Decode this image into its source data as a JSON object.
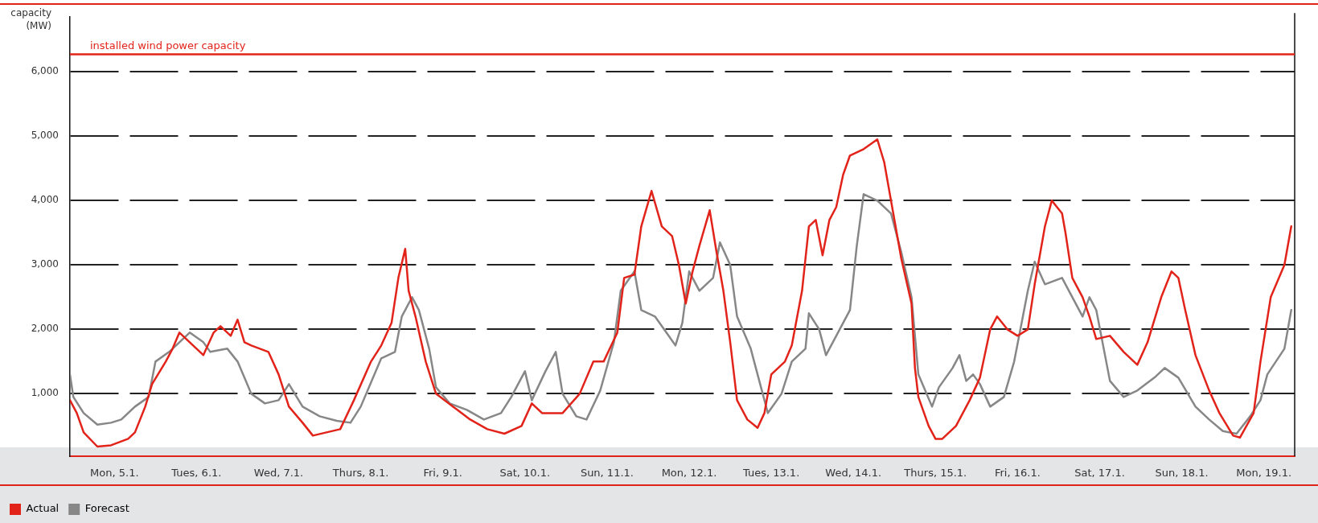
{
  "chart_data": {
    "type": "line",
    "ylabel": "capacity (MW)",
    "xlim": [
      "--01-04T11:00",
      "--01-19T09:00"
    ],
    "ylim": [
      30,
      6850
    ],
    "xticks": [
      {
        "value": "--01-05",
        "label": "Mon, 5.1."
      },
      {
        "value": "--01-06",
        "label": "Tues, 6.1."
      },
      {
        "value": "--01-07",
        "label": "Wed, 7.1."
      },
      {
        "value": "--01-08",
        "label": "Thurs, 8.1."
      },
      {
        "value": "--01-09",
        "label": "Fri, 9.1."
      },
      {
        "value": "--01-10",
        "label": "Sat, 10.1."
      },
      {
        "value": "--01-11",
        "label": "Sun, 11.1."
      },
      {
        "value": "--01-12",
        "label": "Mon, 12.1."
      },
      {
        "value": "--01-13",
        "label": "Tues, 13.1."
      },
      {
        "value": "--01-14",
        "label": "Wed, 14.1."
      },
      {
        "value": "--01-15",
        "label": "Thurs, 15.1."
      },
      {
        "value": "--01-16",
        "label": "Fri, 16.1."
      },
      {
        "value": "--01-17",
        "label": "Sat, 17.1."
      },
      {
        "value": "--01-18",
        "label": "Sun, 18.1."
      },
      {
        "value": "--01-19",
        "label": "Mon, 19.1."
      }
    ],
    "yticks": [
      {
        "value": 1000,
        "label": "1,000"
      },
      {
        "value": 2000,
        "label": "2,000"
      },
      {
        "value": 3000,
        "label": "3,000"
      },
      {
        "value": 4000,
        "label": "4,000"
      },
      {
        "value": 5000,
        "label": "5,000"
      },
      {
        "value": 6000,
        "label": "6,000"
      }
    ],
    "grid": "y",
    "legend": "bottom left",
    "marker": "none",
    "line_style": "solid",
    "ref_lines": [
      {
        "axis": "y",
        "value": 6270,
        "label": "installed wind power capacity",
        "color": "#e2231a"
      }
    ],
    "series": [
      {
        "name": "Actual",
        "color": "#e2231a",
        "x": [
          "--01-04T11:00",
          "--01-04T13:00",
          "--01-04T15:00",
          "--01-04T19:00",
          "--01-04T23:00",
          "--01-05T04:00",
          "--01-05T06:00",
          "--01-05T09:00",
          "--01-05T11:00",
          "--01-05T15:00",
          "--01-05T17:00",
          "--01-05T19:00",
          "--01-05T22:00",
          "--01-06T02:00",
          "--01-06T05:00",
          "--01-06T07:00",
          "--01-06T10:00",
          "--01-06T12:00",
          "--01-06T14:00",
          "--01-06T16:00",
          "--01-06T21:00",
          "--01-07T00:00",
          "--01-07T03:00",
          "--01-07T07:00",
          "--01-07T10:00",
          "--01-07T14:00",
          "--01-07T18:00",
          "--01-07T22:00",
          "--01-08T03:00",
          "--01-08T06:00",
          "--01-08T09:00",
          "--01-08T11:00",
          "--01-08T13:00",
          "--01-08T14:00",
          "--01-08T16:00",
          "--01-08T19:00",
          "--01-08T22:00",
          "--01-09T03:00",
          "--01-09T08:00",
          "--01-09T13:00",
          "--01-09T18:00",
          "--01-09T23:00",
          "--01-10T02:00",
          "--01-10T05:00",
          "--01-10T11:00",
          "--01-10T16:00",
          "--01-10T20:00",
          "--01-10T23:00",
          "--01-11T03:00",
          "--01-11T05:00",
          "--01-11T08:00",
          "--01-11T10:00",
          "--01-11T13:00",
          "--01-11T16:00",
          "--01-11T19:00",
          "--01-11T21:00",
          "--01-11T23:00",
          "--01-12T01:00",
          "--01-12T03:00",
          "--01-12T06:00",
          "--01-12T08:00",
          "--01-12T10:00",
          "--01-12T12:00",
          "--01-12T14:00",
          "--01-12T17:00",
          "--01-12T20:00",
          "--01-12T22:00",
          "--01-13T00:00",
          "--01-13T04:00",
          "--01-13T06:00",
          "--01-13T09:00",
          "--01-13T11:00",
          "--01-13T13:00",
          "--01-13T15:00",
          "--01-13T17:00",
          "--01-13T19:00",
          "--01-13T21:00",
          "--01-13T23:00",
          "--01-14T03:00",
          "--01-14T07:00",
          "--01-14T09:00",
          "--01-14T12:00",
          "--01-14T14:00",
          "--01-14T17:00",
          "--01-14T18:00",
          "--01-14T19:00",
          "--01-14T22:00",
          "--01-15T00:00",
          "--01-15T02:00",
          "--01-15T06:00",
          "--01-15T10:00",
          "--01-15T13:00",
          "--01-15T16:00",
          "--01-15T18:00",
          "--01-15T21:00",
          "--01-16T00:00",
          "--01-16T03:00",
          "--01-16T05:00",
          "--01-16T08:00",
          "--01-16T10:00",
          "--01-16T13:00",
          "--01-16T14:00",
          "--01-16T16:00",
          "--01-16T19:00",
          "--01-16T21:00",
          "--01-16T23:00",
          "--01-17T03:00",
          "--01-17T07:00",
          "--01-17T11:00",
          "--01-17T14:00",
          "--01-17T18:00",
          "--01-17T21:00",
          "--01-17T23:00",
          "--01-18T01:00",
          "--01-18T04:00",
          "--01-18T08:00",
          "--01-18T11:00",
          "--01-18T15:00",
          "--01-18T17:00",
          "--01-18T21:00",
          "--01-18T23:00",
          "--01-19T02:00",
          "--01-19T06:00",
          "--01-19T08:00"
        ],
        "values": [
          900,
          700,
          400,
          180,
          200,
          300,
          400,
          800,
          1150,
          1500,
          1700,
          1950,
          1800,
          1600,
          1950,
          2050,
          1900,
          2150,
          1800,
          1750,
          1650,
          1300,
          800,
          550,
          350,
          400,
          450,
          900,
          1500,
          1750,
          2100,
          2800,
          3250,
          2600,
          2200,
          1500,
          1000,
          800,
          600,
          450,
          380,
          500,
          850,
          700,
          700,
          1000,
          1500,
          1500,
          1950,
          2800,
          2850,
          3600,
          4150,
          3600,
          3450,
          3000,
          2400,
          2900,
          3300,
          3850,
          3200,
          2600,
          1800,
          900,
          600,
          470,
          700,
          1300,
          1500,
          1750,
          2600,
          3600,
          3700,
          3150,
          3700,
          3900,
          4400,
          4700,
          4800,
          4950,
          4600,
          3700,
          3100,
          2400,
          1400,
          950,
          500,
          300,
          300,
          500,
          900,
          1250,
          2000,
          2200,
          2000,
          1900,
          2000,
          2700,
          3600,
          4000,
          3800,
          3500,
          2800,
          2500,
          2200,
          1850,
          1900,
          1650,
          1450,
          1800,
          2500,
          2900,
          2800,
          2300,
          1600,
          1050,
          700,
          350,
          320,
          700,
          1500,
          2500,
          3000,
          3600
        ]
      },
      {
        "name": "Forecast",
        "color": "#878787",
        "x": [
          "--01-04T11:00",
          "--01-04T12:00",
          "--01-04T15:00",
          "--01-04T19:00",
          "--01-04T23:00",
          "--01-05T02:00",
          "--01-05T06:00",
          "--01-05T10:00",
          "--01-05T12:00",
          "--01-05T16:00",
          "--01-05T20:00",
          "--01-05T22:00",
          "--01-06T02:00",
          "--01-06T04:00",
          "--01-06T09:00",
          "--01-06T12:00",
          "--01-06T14:00",
          "--01-06T16:00",
          "--01-06T20:00",
          "--01-07T00:00",
          "--01-07T03:00",
          "--01-07T07:00",
          "--01-07T12:00",
          "--01-07T17:00",
          "--01-07T21:00",
          "--01-08T00:00",
          "--01-08T04:00",
          "--01-08T06:00",
          "--01-08T10:00",
          "--01-08T12:00",
          "--01-08T15:00",
          "--01-08T17:00",
          "--01-08T20:00",
          "--01-08T22:00",
          "--01-09T02:00",
          "--01-09T07:00",
          "--01-09T12:00",
          "--01-09T17:00",
          "--01-09T20:00",
          "--01-10T00:00",
          "--01-10T02:00",
          "--01-10T06:00",
          "--01-10T09:00",
          "--01-10T11:00",
          "--01-10T15:00",
          "--01-10T18:00",
          "--01-10T22:00",
          "--01-11T02:00",
          "--01-11T04:00",
          "--01-11T08:00",
          "--01-11T10:00",
          "--01-11T14:00",
          "--01-11T18:00",
          "--01-11T20:00",
          "--01-11T22:00",
          "--01-12T00:00",
          "--01-12T03:00",
          "--01-12T07:00",
          "--01-12T09:00",
          "--01-12T12:00",
          "--01-12T14:00",
          "--01-12T18:00",
          "--01-12T21:00",
          "--01-12T23:00",
          "--01-13T03:00",
          "--01-13T06:00",
          "--01-13T10:00",
          "--01-13T11:00",
          "--01-13T14:00",
          "--01-13T16:00",
          "--01-13T20:00",
          "--01-13T23:00",
          "--01-14T01:00",
          "--01-14T03:00",
          "--01-14T07:00",
          "--01-14T11:00",
          "--01-14T14:00",
          "--01-14T17:00",
          "--01-14T19:00",
          "--01-14T23:00",
          "--01-15T01:00",
          "--01-15T05:00",
          "--01-15T07:00",
          "--01-15T09:00",
          "--01-15T11:00",
          "--01-15T13:00",
          "--01-15T16:00",
          "--01-15T20:00",
          "--01-15T23:00",
          "--01-16T03:00",
          "--01-16T05:00",
          "--01-16T08:00",
          "--01-16T13:00",
          "--01-16T16:00",
          "--01-16T19:00",
          "--01-16T21:00",
          "--01-16T23:00",
          "--01-17T03:00",
          "--01-17T07:00",
          "--01-17T11:00",
          "--01-17T16:00",
          "--01-17T19:00",
          "--01-17T23:00",
          "--01-18T04:00",
          "--01-18T08:00",
          "--01-18T12:00",
          "--01-18T16:00",
          "--01-18T20:00",
          "--01-18T23:00",
          "--01-19T01:00",
          "--01-19T06:00",
          "--01-19T08:00"
        ],
        "values": [
          1300,
          950,
          700,
          520,
          550,
          600,
          800,
          950,
          1500,
          1650,
          1850,
          1950,
          1800,
          1650,
          1700,
          1500,
          1250,
          1000,
          850,
          900,
          1150,
          800,
          650,
          580,
          550,
          800,
          1300,
          1550,
          1650,
          2200,
          2500,
          2300,
          1700,
          1100,
          850,
          750,
          600,
          700,
          950,
          1350,
          900,
          1350,
          1650,
          1000,
          650,
          600,
          1050,
          1800,
          2600,
          2900,
          2300,
          2200,
          1900,
          1750,
          2100,
          2900,
          2600,
          2800,
          3350,
          3000,
          2200,
          1700,
          1100,
          700,
          1000,
          1500,
          1700,
          2250,
          2000,
          1600,
          2000,
          2300,
          3300,
          4100,
          4000,
          3800,
          3200,
          2500,
          1300,
          800,
          1100,
          1400,
          1600,
          1200,
          1300,
          1150,
          800,
          950,
          1500,
          2600,
          3050,
          2700,
          2800,
          2500,
          2200,
          2500,
          2300,
          1200,
          950,
          1050,
          1250,
          1400,
          1250,
          800,
          600,
          420,
          380,
          650,
          900,
          1300,
          1700,
          2300
        ]
      }
    ]
  }
}
